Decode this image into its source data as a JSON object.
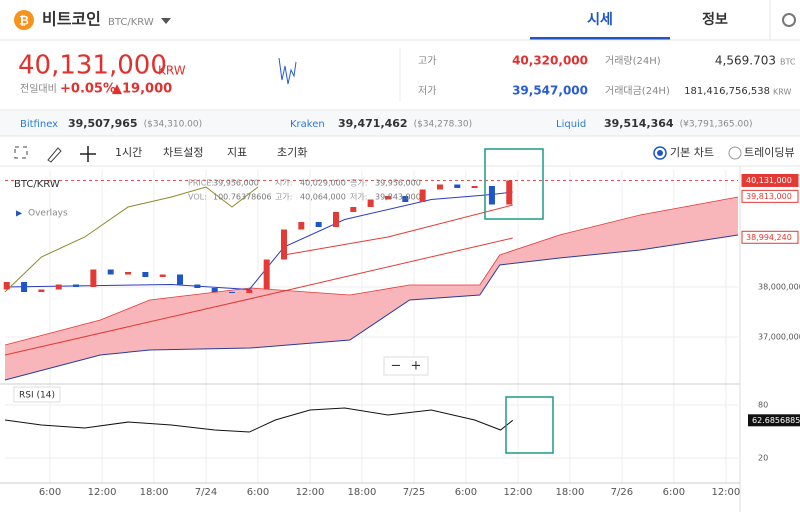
{
  "header": {
    "coin_name": "비트코인",
    "pair": "BTC/KRW",
    "tabs": [
      "시세",
      "정보"
    ]
  },
  "price": {
    "value": "40,131,000",
    "unit": "KRW",
    "change_label": "전일대비",
    "change_pct": "+0.05%",
    "change_abs": "▲19,000"
  },
  "stats": [
    {
      "label": "고가",
      "value": "40,320,000"
    },
    {
      "label": "저가",
      "value": "39,547,000"
    },
    {
      "label": "거래량(24H)",
      "value": "4,569.703",
      "unit": "BTC"
    },
    {
      "label": "거래대금(24H)",
      "value": "181,416,756,538",
      "unit": "KRW"
    }
  ],
  "exchanges": [
    {
      "name": "Bitfinex",
      "price": "39,507,965",
      "alt": "($34,310.00)"
    },
    {
      "name": "Kraken",
      "price": "39,471,462",
      "alt": "($34,278.30)"
    },
    {
      "name": "Liquid",
      "price": "39,514,364",
      "alt": "(¥3,791,365.00)"
    }
  ],
  "toolbar": {
    "interval": "1시간",
    "items": [
      "차트설정",
      "지표",
      "초기화"
    ],
    "chart_modes": [
      "기본 차트",
      "트레이딩뷰"
    ]
  },
  "chart_labels": {
    "overlays": "Overlays",
    "rsi": "RSI (14)",
    "zoom": [
      "−",
      "+"
    ]
  },
  "chart_data": [
    {
      "type": "candlestick",
      "title": "BTC/KRW",
      "legend_info": [
        {
          "label": "PRICE:",
          "value": "39,956,000"
        },
        {
          "label": "시가:",
          "value": "40,029,000"
        },
        {
          "label": "종가:",
          "value": "39,956,000"
        },
        {
          "label": "VOL:",
          "value": "100.76378606"
        },
        {
          "label": "고가:",
          "value": "40,064,000"
        },
        {
          "label": "저가:",
          "value": "39,843,000"
        }
      ],
      "x": [
        1,
        3,
        5,
        7,
        9,
        11,
        13,
        15,
        17,
        19,
        21,
        23,
        25,
        27,
        29,
        31,
        33,
        35,
        37,
        39,
        41,
        43,
        45,
        47,
        49,
        51,
        53,
        55,
        57,
        59
      ],
      "open": [
        37950000,
        38100000,
        37900000,
        37950000,
        38050000,
        38000000,
        38350000,
        38250000,
        38300000,
        38200000,
        38250000,
        38050000,
        37980000,
        37900000,
        37880000,
        37950000,
        38550000,
        39150000,
        39300000,
        39200000,
        39500000,
        39600000,
        39750000,
        39820000,
        39700000,
        39950000,
        40050000,
        39980000,
        40020000,
        39650000
      ],
      "close": [
        38100000,
        37900000,
        37950000,
        38050000,
        38000000,
        38350000,
        38250000,
        38300000,
        38200000,
        38250000,
        38050000,
        37980000,
        37900000,
        37880000,
        37950000,
        38550000,
        39150000,
        39300000,
        39200000,
        39500000,
        39600000,
        39750000,
        39820000,
        39700000,
        39950000,
        40050000,
        39980000,
        40020000,
        39650000,
        40131000
      ],
      "up_color": "#e53935",
      "down_color": "#1e56c8",
      "cloud": {
        "x": [
          0.8,
          11.8,
          17.5,
          29.1,
          40.6,
          47.5,
          55.6,
          57.9,
          64.8,
          74.1,
          85.4
        ],
        "upper": [
          36840000,
          37340000,
          37740000,
          37980000,
          37840000,
          38040000,
          38040000,
          38640000,
          39040000,
          39440000,
          39800000
        ],
        "lower": [
          36140000,
          36640000,
          36740000,
          36780000,
          36940000,
          37740000,
          37840000,
          38440000,
          38580000,
          38740000,
          39040000
        ],
        "fill": "#f8b6bb",
        "upper_color": "#e53935",
        "lower_color": "#283c9c"
      },
      "lines": [
        {
          "x": [
            0.8,
            30,
            59.4
          ],
          "values": [
            36640000,
            37800000,
            38980000
          ],
          "color": "#e53935"
        },
        {
          "x": [
            33,
            45,
            59.4
          ],
          "values": [
            38640000,
            39000000,
            39640000
          ],
          "color": "#e53935"
        },
        {
          "x": [
            0.8,
            20,
            29,
            33,
            40,
            50,
            57,
            59.4
          ],
          "values": [
            38000000,
            38050000,
            37950000,
            38800000,
            39350000,
            39750000,
            39850000,
            39900000
          ],
          "color": "#2b3cc4"
        },
        {
          "x": [
            0.8,
            5,
            10,
            15,
            20,
            24,
            27,
            30
          ],
          "values": [
            37900000,
            38600000,
            39000000,
            39600000,
            39800000,
            40000000,
            39600000,
            40000000
          ],
          "color": "#8b8b2a"
        }
      ],
      "price_tags": [
        {
          "value": 40131000,
          "label": "40,131,000",
          "color": "#e53935"
        },
        {
          "value": 39813000,
          "label": "39,813,000",
          "color": "#e53935"
        },
        {
          "value": 38994240,
          "label": "38,994,240",
          "color": "#e53935"
        }
      ],
      "ylim": [
        36100000,
        40340000
      ],
      "yticks": [
        {
          "value": 38000000,
          "label": "38,000,000"
        },
        {
          "value": 37000000,
          "label": "37,000,000"
        }
      ],
      "xlim": [
        0.8,
        85.4
      ],
      "xticks": [
        {
          "value": 6,
          "label": "6:00"
        },
        {
          "value": 12,
          "label": "12:00"
        },
        {
          "value": 18,
          "label": "18:00"
        },
        {
          "value": 24,
          "label": "7/24"
        },
        {
          "value": 30,
          "label": "6:00"
        },
        {
          "value": 36,
          "label": "12:00"
        },
        {
          "value": 42,
          "label": "18:00"
        },
        {
          "value": 48,
          "label": "7/25"
        },
        {
          "value": 54,
          "label": "6:00"
        },
        {
          "value": 60,
          "label": "12:00"
        },
        {
          "value": 66,
          "label": "18:00"
        },
        {
          "value": 72,
          "label": "7/26"
        },
        {
          "value": 78,
          "label": "6:00"
        },
        {
          "value": 84,
          "label": "12:00"
        }
      ],
      "grid": true
    },
    {
      "type": "line",
      "x": [
        0.8,
        5,
        10,
        15,
        20,
        25,
        29,
        32,
        36,
        40,
        45,
        50,
        55,
        58,
        59.4
      ],
      "values": [
        63.0,
        57.4,
        54.0,
        60.7,
        57.4,
        51.7,
        49.4,
        63.0,
        74.3,
        76.6,
        68.7,
        74.3,
        63.0,
        51.7,
        62.6856885
      ],
      "color": "#111111",
      "ylim": [
        -8.3,
        100.4
      ],
      "yticks": [
        80,
        20
      ],
      "xlim": [
        0.8,
        85.4
      ]
    }
  ]
}
